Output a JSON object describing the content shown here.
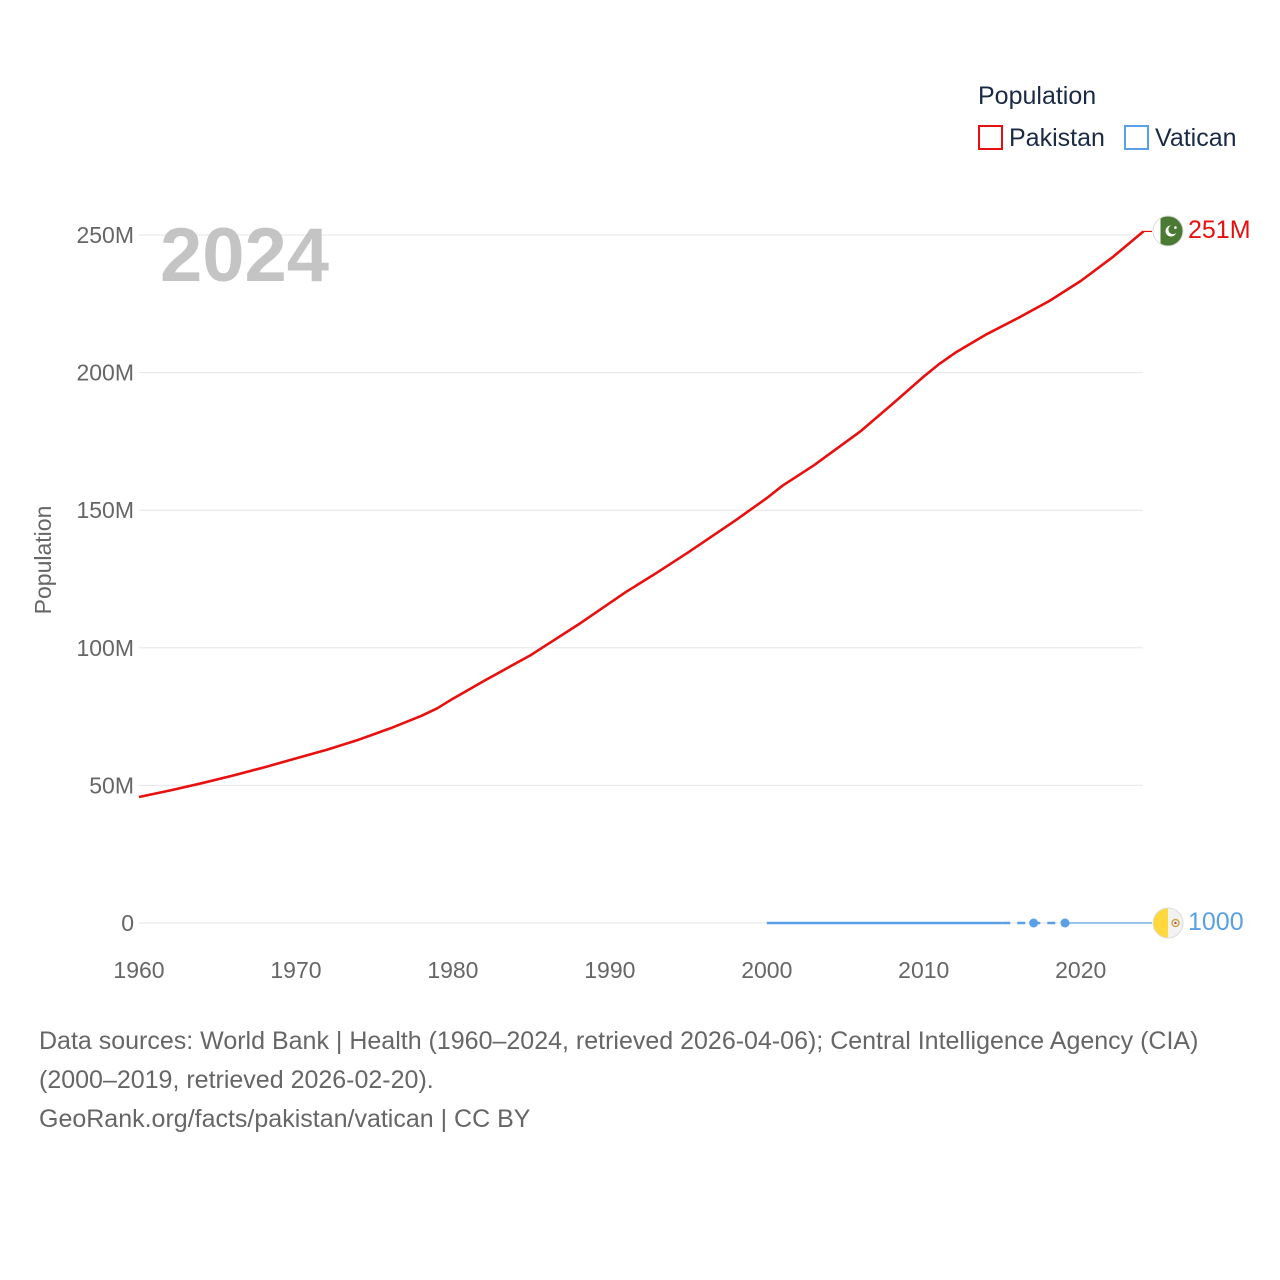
{
  "chart_data": {
    "type": "line",
    "title": "2024",
    "xlabel": "",
    "ylabel": "Population",
    "xlim": [
      1960,
      2024
    ],
    "ylim": [
      0,
      250000000
    ],
    "x_ticks": [
      1960,
      1970,
      1980,
      1990,
      2000,
      2010,
      2020
    ],
    "x_tick_labels": [
      "1960",
      "1970",
      "1980",
      "1990",
      "2000",
      "2010",
      "2020"
    ],
    "y_ticks": [
      0,
      50000000,
      100000000,
      150000000,
      200000000,
      250000000
    ],
    "y_tick_labels": [
      "0",
      "50M",
      "100M",
      "150M",
      "200M",
      "250M"
    ],
    "legend": {
      "title": "Population",
      "position": "top-right",
      "entries": [
        "Pakistan",
        "Vatican"
      ]
    },
    "series": [
      {
        "name": "Pakistan",
        "color": "#e8100e",
        "end_label": "251M",
        "flag_icon": "pakistan-flag-icon",
        "x": [
          1960,
          1962,
          1964,
          1966,
          1968,
          1970,
          1972,
          1974,
          1976,
          1978,
          1979,
          1980,
          1982,
          1985,
          1988,
          1991,
          1993,
          1995,
          1998,
          2000,
          2001,
          2003,
          2006,
          2008,
          2010,
          2011,
          2012,
          2014,
          2016,
          2018,
          2020,
          2022,
          2024
        ],
        "values": [
          45800000,
          48200000,
          50800000,
          53600000,
          56600000,
          59800000,
          63000000,
          66600000,
          70700000,
          75300000,
          78000000,
          81500000,
          88000000,
          97500000,
          108500000,
          120200000,
          127300000,
          134700000,
          146300000,
          154400000,
          158900000,
          166300000,
          178800000,
          188600000,
          198600000,
          203200000,
          207200000,
          213900000,
          219800000,
          226000000,
          233300000,
          241800000,
          251300000
        ]
      },
      {
        "name": "Vatican",
        "color": "#5aa0e6",
        "end_label": "1000",
        "flag_icon": "vatican-flag-icon",
        "x": [
          2000,
          2015,
          2017,
          2019,
          2024
        ],
        "values": [
          900,
          1000,
          1000,
          1000,
          1000
        ],
        "dashed_segment": [
          2015,
          2019
        ],
        "markers": [
          2017,
          2019
        ]
      }
    ]
  },
  "footer": {
    "sources_line1": "Data sources: World Bank | Health (1960–2024, retrieved 2026-04-06); Central Intelligence Agency (CIA)",
    "sources_line2": "(2000–2019, retrieved 2026-02-20).",
    "credit": "GeoRank.org/facts/pakistan/vatican | CC BY"
  }
}
